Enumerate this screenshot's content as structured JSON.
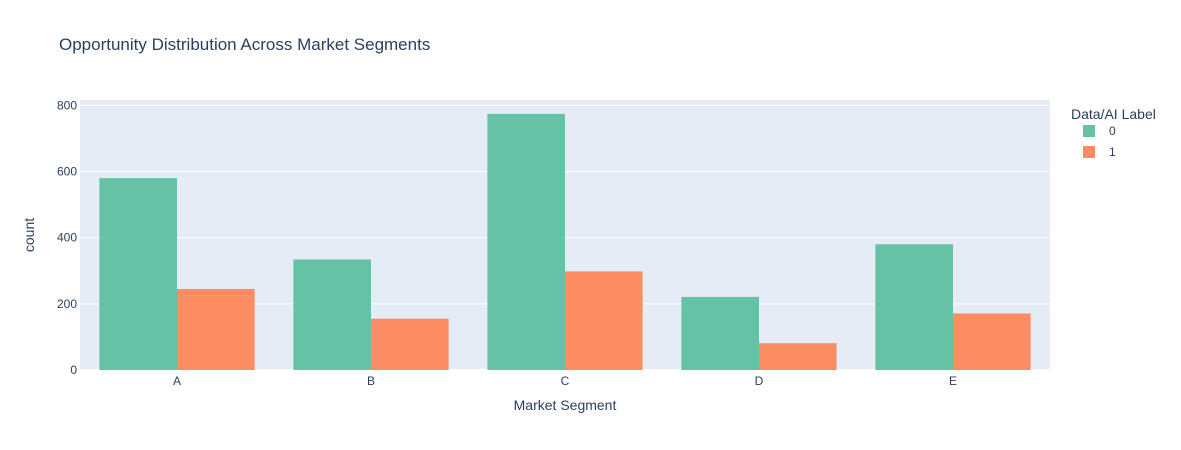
{
  "chart_data": {
    "type": "bar",
    "title": "Opportunity Distribution Across Market Segments",
    "xlabel": "Market Segment",
    "ylabel": "count",
    "categories": [
      "A",
      "B",
      "C",
      "D",
      "E"
    ],
    "series": [
      {
        "name": "0",
        "values": [
          580,
          334,
          774,
          221,
          380
        ],
        "color": "#66c2a5"
      },
      {
        "name": "1",
        "values": [
          245,
          155,
          298,
          81,
          171
        ],
        "color": "#fc8d62"
      }
    ],
    "ylim": [
      0,
      816
    ],
    "yticks": [
      0,
      200,
      400,
      600,
      800
    ],
    "grid": true,
    "legend": {
      "title": "Data/AI Label",
      "placement": "top-right"
    },
    "colors": {
      "plot_bg": "#e5ecf6",
      "grid": "#ffffff",
      "text": "#2a3f5f"
    }
  }
}
